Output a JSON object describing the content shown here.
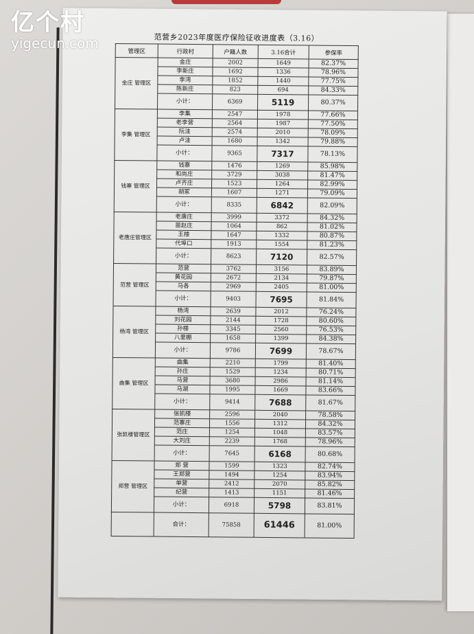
{
  "watermark": {
    "cn": "亿个村",
    "en": "yigecun.com"
  },
  "title": "范营乡2023年度医疗保险征收进度表（3.16）",
  "headers": [
    "管理区",
    "行政村",
    "户籍人数",
    "3.16合计",
    "参保率"
  ],
  "subtotal_label": "小计：",
  "total": {
    "label": "合计：",
    "households": "75858",
    "total": "61446",
    "rate": "81.00%"
  },
  "districts": [
    {
      "name": "金庄 管理区",
      "rows": [
        [
          "金庄",
          "2002",
          "1649",
          "82.37%"
        ],
        [
          "李新庄",
          "1692",
          "1336",
          "78.96%"
        ],
        [
          "李湾",
          "1852",
          "1440",
          "77.75%"
        ],
        [
          "陈新庄",
          "823",
          "694",
          "84.33%"
        ]
      ],
      "subtotal": [
        "6369",
        "5119",
        "80.37%"
      ]
    },
    {
      "name": "李集 管理区",
      "rows": [
        [
          "李集",
          "2547",
          "1978",
          "77.66%"
        ],
        [
          "老李营",
          "2564",
          "1987",
          "77.50%"
        ],
        [
          "阮洼",
          "2574",
          "2010",
          "78.09%"
        ],
        [
          "卢洼",
          "1680",
          "1342",
          "79.88%"
        ]
      ],
      "subtotal": [
        "9365",
        "7317",
        "78.13%"
      ]
    },
    {
      "name": "钱寨 管理区",
      "rows": [
        [
          "钱寨",
          "1476",
          "1269",
          "85.98%"
        ],
        [
          "和尚庄",
          "3729",
          "3038",
          "81.47%"
        ],
        [
          "卢齐庄",
          "1523",
          "1264",
          "82.99%"
        ],
        [
          "胡冢",
          "1607",
          "1271",
          "79.09%"
        ]
      ],
      "subtotal": [
        "8335",
        "6842",
        "82.09%"
      ]
    },
    {
      "name": "老唐庄管理区",
      "rows": [
        [
          "老唐庄",
          "3999",
          "3372",
          "84.32%"
        ],
        [
          "苗赵庄",
          "1064",
          "862",
          "81.02%"
        ],
        [
          "王楼",
          "1647",
          "1332",
          "80.87%"
        ],
        [
          "代埠口",
          "1913",
          "1554",
          "81.23%"
        ]
      ],
      "subtotal": [
        "8623",
        "7120",
        "82.57%"
      ]
    },
    {
      "name": "范营 管理区",
      "rows": [
        [
          "范营",
          "3762",
          "3156",
          "83.89%"
        ],
        [
          "黄花园",
          "2672",
          "2134",
          "79.87%"
        ],
        [
          "马各",
          "2969",
          "2405",
          "81.00%"
        ]
      ],
      "subtotal": [
        "9403",
        "7695",
        "81.84%"
      ]
    },
    {
      "name": "杨湾 管理区",
      "rows": [
        [
          "杨湾",
          "2639",
          "2012",
          "76.24%"
        ],
        [
          "刘花园",
          "2144",
          "1728",
          "80.60%"
        ],
        [
          "孙楼",
          "3345",
          "2560",
          "76.53%"
        ],
        [
          "八里棚",
          "1658",
          "1399",
          "84.38%"
        ]
      ],
      "subtotal": [
        "9786",
        "7699",
        "78.67%"
      ]
    },
    {
      "name": "曲集 管理区",
      "rows": [
        [
          "曲集",
          "2210",
          "1799",
          "81.40%"
        ],
        [
          "孙庄",
          "1529",
          "1234",
          "80.71%"
        ],
        [
          "马营",
          "3680",
          "2986",
          "81.14%"
        ],
        [
          "马湖",
          "1995",
          "1669",
          "83.66%"
        ]
      ],
      "subtotal": [
        "9414",
        "7688",
        "81.67%"
      ]
    },
    {
      "name": "张凯楼管理区",
      "rows": [
        [
          "张凯楼",
          "2596",
          "2040",
          "78.58%"
        ],
        [
          "范寨庄",
          "1556",
          "1312",
          "84.32%"
        ],
        [
          "范庄",
          "1254",
          "1048",
          "83.57%"
        ],
        [
          "大刘庄",
          "2239",
          "1768",
          "78.96%"
        ]
      ],
      "subtotal": [
        "7645",
        "6168",
        "80.68%"
      ]
    },
    {
      "name": "郑营 管理区",
      "rows": [
        [
          "郑 营",
          "1599",
          "1323",
          "82.74%"
        ],
        [
          "王郑营",
          "1494",
          "1254",
          "83.94%"
        ],
        [
          "单营",
          "2412",
          "2070",
          "85.82%"
        ],
        [
          "纪营",
          "1413",
          "1151",
          "81.46%"
        ]
      ],
      "subtotal": [
        "6918",
        "5798",
        "83.81%"
      ]
    }
  ]
}
